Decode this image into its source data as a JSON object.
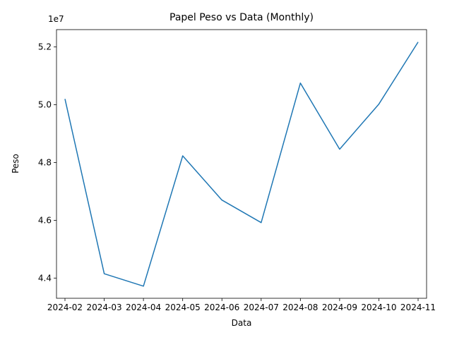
{
  "chart_data": {
    "type": "line",
    "title": "Papel Peso vs Data (Monthly)",
    "xlabel": "Data",
    "ylabel": "Peso",
    "y_offset_label": "1e7",
    "y_scale_factor": 10000000,
    "x": [
      "2024-02",
      "2024-03",
      "2024-04",
      "2024-05",
      "2024-06",
      "2024-07",
      "2024-08",
      "2024-09",
      "2024-10",
      "2024-11"
    ],
    "series": [
      {
        "values": [
          50200000,
          44150000,
          43720000,
          48230000,
          46700000,
          45920000,
          50750000,
          48460000,
          50020000,
          52170000
        ]
      }
    ],
    "ylim": [
      43300000,
      52600000
    ],
    "yticks": [
      44000000,
      46000000,
      48000000,
      50000000,
      52000000
    ],
    "ytick_labels": [
      "4.4",
      "4.6",
      "4.8",
      "5.0",
      "5.2"
    ],
    "line_color": "#1f77b4",
    "grid": false,
    "legend": "none"
  }
}
